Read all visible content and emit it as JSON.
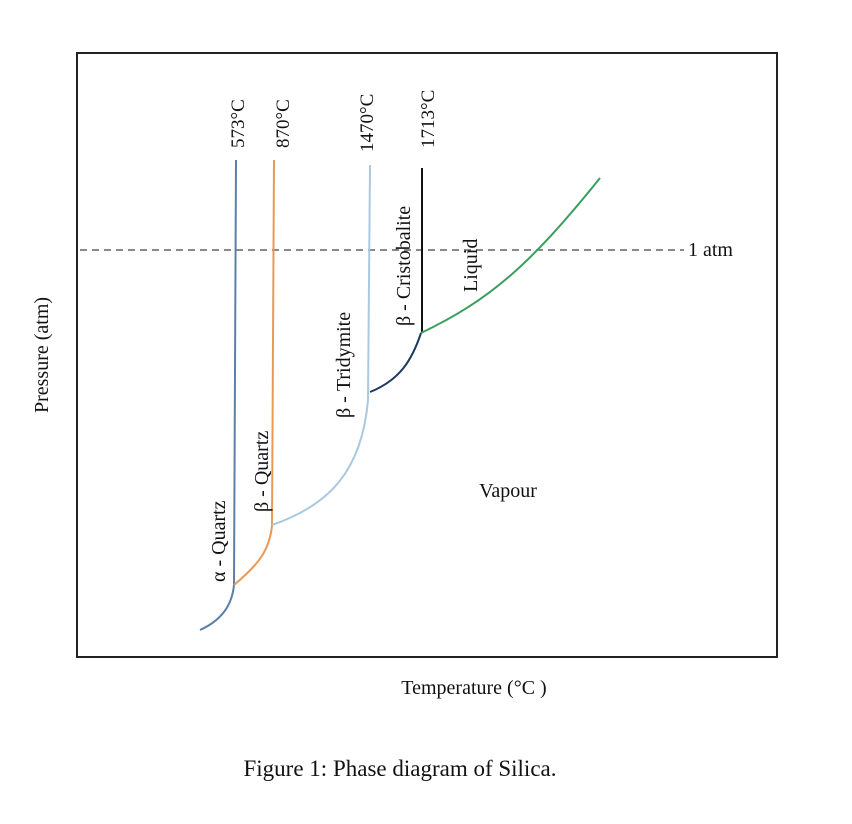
{
  "diagram": {
    "axes": {
      "y_label": "Pressure (atm)",
      "x_label": "Temperature (°C )"
    },
    "transition_temperatures": [
      "573°C",
      "870°C",
      "1470°C",
      "1713°C"
    ],
    "phases": [
      "α - Quartz",
      "β - Quartz",
      "β - Tridymite",
      "β - Cristobalite",
      "Liquid",
      "Vapour"
    ],
    "reference_line": "1 atm"
  },
  "caption": "Figure 1: Phase diagram of Silica."
}
